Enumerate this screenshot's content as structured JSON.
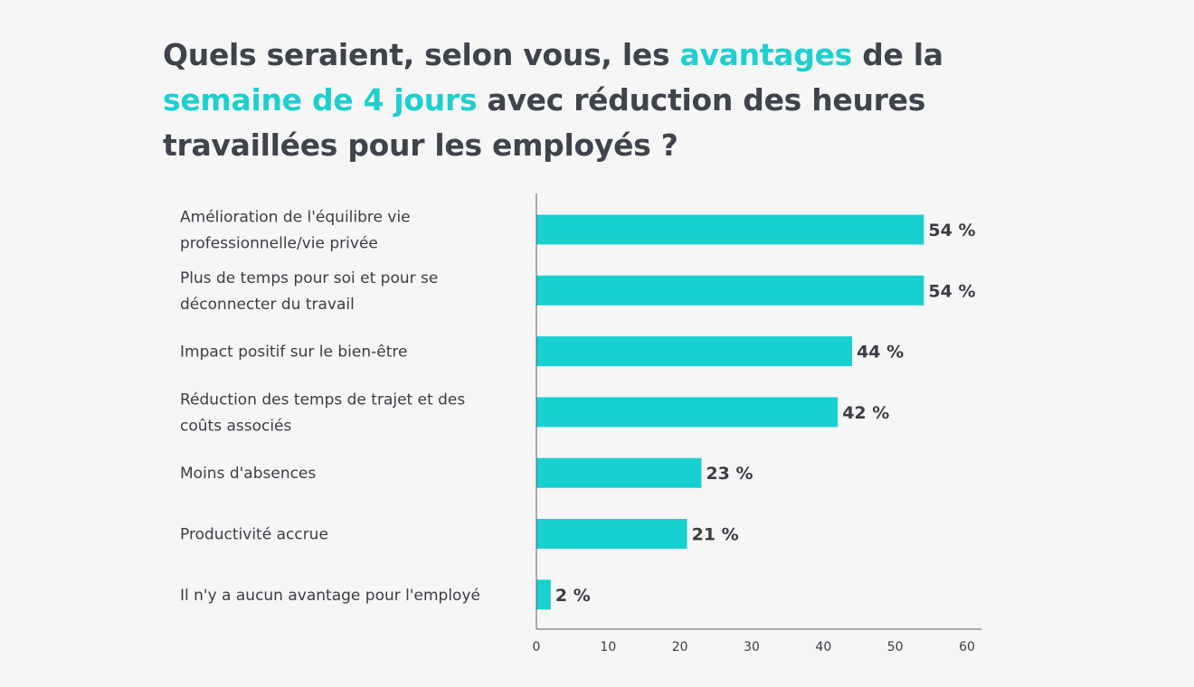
{
  "title": {
    "parts": [
      {
        "text": "Quels seraient, selon vous, les ",
        "highlight": false
      },
      {
        "text": "avantages",
        "highlight": true
      },
      {
        "text": " de la ",
        "highlight": false
      },
      {
        "text": "semaine de 4 jours",
        "highlight": true
      },
      {
        "text": " avec réduction des heures travaillées pour les employés ?",
        "highlight": false
      }
    ]
  },
  "colors": {
    "bar": "#19d0d0",
    "highlight": "#1ecfcf",
    "text": "#3a3d44",
    "axis": "#5a5d63"
  },
  "chart_data": {
    "type": "bar",
    "orientation": "horizontal",
    "categories": [
      [
        "Amélioration de l'équilibre vie",
        "professionnelle/vie privée"
      ],
      [
        "Plus de temps pour soi et pour se",
        "déconnecter du travail"
      ],
      [
        "Impact positif sur le bien-être"
      ],
      [
        "Réduction des temps de trajet et des",
        "coûts associés"
      ],
      [
        "Moins d'absences"
      ],
      [
        "Productivité accrue"
      ],
      [
        "Il n'y a aucun avantage pour l'employé"
      ]
    ],
    "values": [
      54,
      54,
      44,
      42,
      23,
      21,
      2
    ],
    "value_labels": [
      "54 %",
      "54 %",
      "44 %",
      "42 %",
      "23 %",
      "21 %",
      "2 %"
    ],
    "xlim": [
      0,
      60
    ],
    "xticks": [
      0,
      10,
      20,
      30,
      40,
      50,
      60
    ],
    "xlabel": "",
    "ylabel": "",
    "grid": false,
    "legend": "none"
  }
}
